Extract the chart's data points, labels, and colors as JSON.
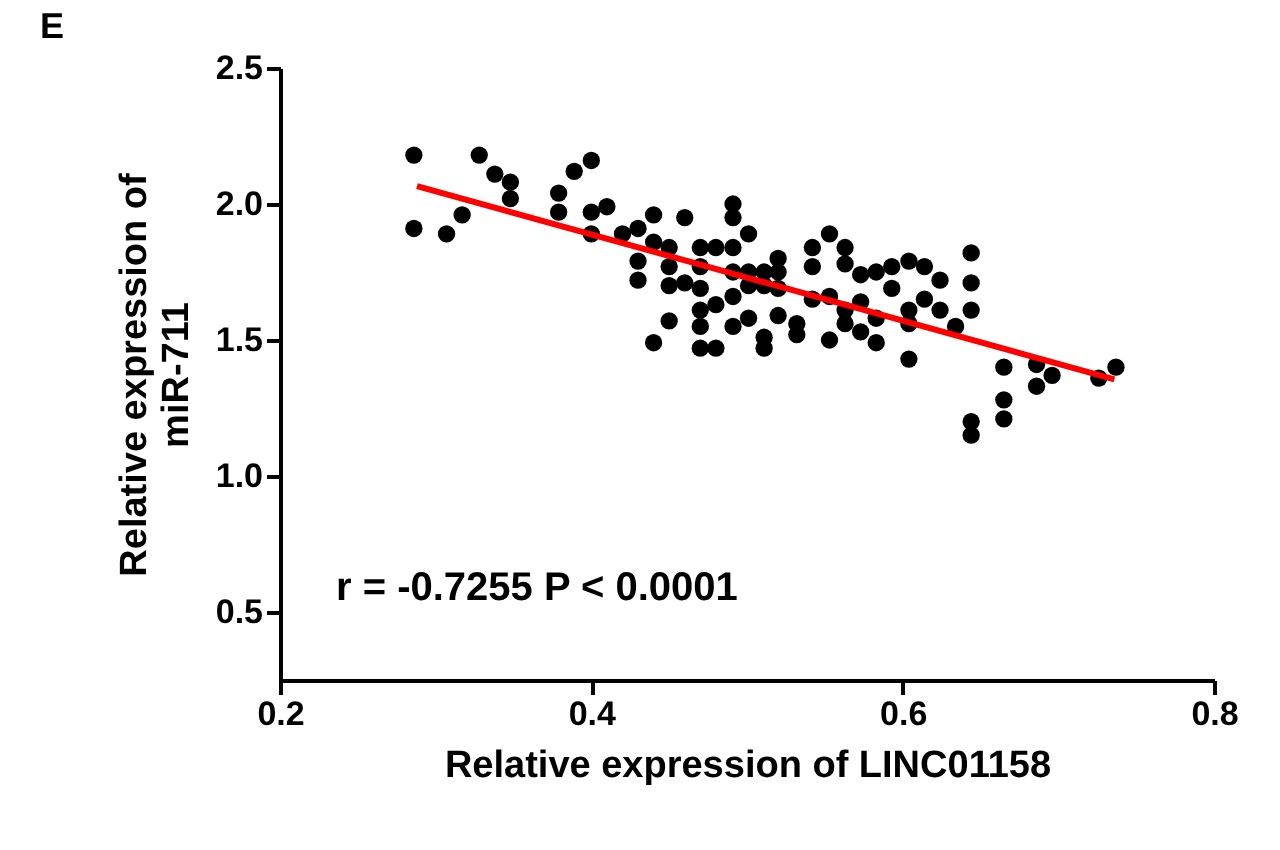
{
  "chart_data": {
    "type": "scatter",
    "title": "E",
    "xlabel": "Relative expression of LINC01158",
    "ylabel": "Relative expression of\nmiR-711",
    "xlim": [
      0.2,
      0.8
    ],
    "xticks": [
      0.2,
      0.4,
      0.6,
      0.8
    ],
    "ylim": [
      0.25,
      2.5
    ],
    "yticks": [
      0.5,
      {
        "value": 1,
        "label": "1.0"
      },
      1.5,
      {
        "value": 2,
        "label": "2.0"
      },
      2.5
    ],
    "grid": false,
    "annotations": [
      "r = -0.7255 P < 0.0001"
    ],
    "series": [
      {
        "color": "#000000",
        "marker": "circle",
        "x": [
          0.286,
          0.286,
          0.307,
          0.317,
          0.328,
          0.338,
          0.348,
          0.348,
          0.379,
          0.379,
          0.389,
          0.4,
          0.4,
          0.4,
          0.41,
          0.42,
          0.43,
          0.43,
          0.43,
          0.44,
          0.44,
          0.44,
          0.45,
          0.45,
          0.45,
          0.45,
          0.46,
          0.46,
          0.47,
          0.47,
          0.47,
          0.47,
          0.47,
          0.47,
          0.48,
          0.48,
          0.48,
          0.491,
          0.491,
          0.491,
          0.491,
          0.491,
          0.491,
          0.501,
          0.501,
          0.501,
          0.501,
          0.511,
          0.511,
          0.511,
          0.511,
          0.52,
          0.52,
          0.52,
          0.52,
          0.532,
          0.532,
          0.542,
          0.542,
          0.542,
          0.553,
          0.553,
          0.553,
          0.563,
          0.563,
          0.563,
          0.563,
          0.573,
          0.573,
          0.573,
          0.583,
          0.583,
          0.583,
          0.593,
          0.593,
          0.604,
          0.604,
          0.604,
          0.604,
          0.614,
          0.614,
          0.624,
          0.624,
          0.634,
          0.644,
          0.644,
          0.644,
          0.644,
          0.644,
          0.665,
          0.665,
          0.665,
          0.686,
          0.686,
          0.696,
          0.726,
          0.737
        ],
        "values": [
          2.18,
          1.91,
          1.89,
          1.96,
          2.18,
          2.11,
          2.08,
          2.02,
          2.04,
          1.97,
          2.12,
          2.16,
          1.97,
          1.89,
          1.99,
          1.89,
          1.91,
          1.79,
          1.72,
          1.96,
          1.86,
          1.49,
          1.84,
          1.77,
          1.7,
          1.57,
          1.95,
          1.71,
          1.84,
          1.77,
          1.69,
          1.61,
          1.55,
          1.47,
          1.84,
          1.63,
          1.47,
          2.0,
          1.95,
          1.84,
          1.75,
          1.66,
          1.55,
          1.89,
          1.75,
          1.7,
          1.58,
          1.75,
          1.7,
          1.51,
          1.47,
          1.8,
          1.75,
          1.69,
          1.59,
          1.56,
          1.52,
          1.84,
          1.77,
          1.65,
          1.89,
          1.66,
          1.5,
          1.84,
          1.78,
          1.61,
          1.56,
          1.74,
          1.64,
          1.53,
          1.75,
          1.58,
          1.49,
          1.77,
          1.69,
          1.79,
          1.61,
          1.56,
          1.43,
          1.77,
          1.65,
          1.72,
          1.61,
          1.55,
          1.82,
          1.71,
          1.61,
          1.2,
          1.15,
          1.4,
          1.28,
          1.21,
          1.41,
          1.33,
          1.37,
          1.36,
          1.4
        ]
      },
      {
        "type": "line",
        "color": "#ff0000",
        "line_style": "solid",
        "x": [
          0.288,
          0.736
        ],
        "values": [
          2.066,
          1.355
        ]
      }
    ]
  }
}
